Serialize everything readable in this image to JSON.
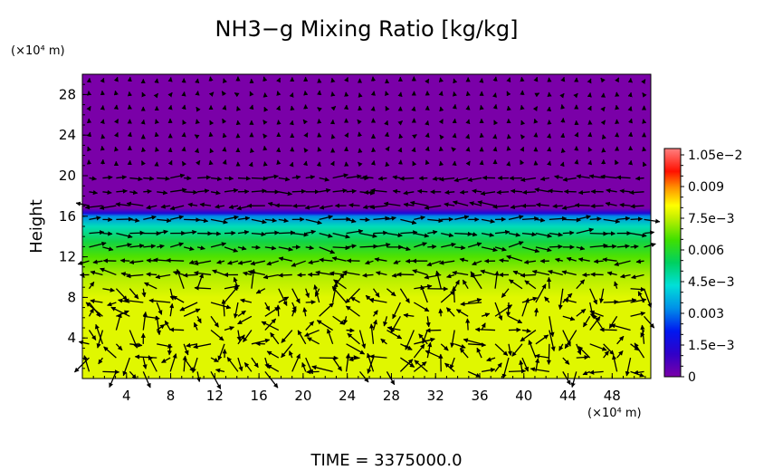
{
  "chart_data": {
    "type": "heatmap",
    "title": "NH3−g Mixing Ratio [kg/kg]",
    "xlabel": "",
    "ylabel": "Height",
    "x_unit": "(×10⁴ m)",
    "y_unit": "(×10⁴ m)",
    "xlim": [
      0,
      51.5
    ],
    "ylim": [
      0,
      30
    ],
    "x_ticks": [
      "4",
      "8",
      "12",
      "16",
      "20",
      "24",
      "28",
      "32",
      "36",
      "40",
      "44",
      "48"
    ],
    "y_ticks": [
      "4",
      "8",
      "12",
      "16",
      "20",
      "24",
      "28"
    ],
    "colorbar": {
      "min": 0,
      "max": 0.0108,
      "ticks": [
        {
          "value": 0,
          "label": "0"
        },
        {
          "value": 0.0015,
          "label": "1.5e−3"
        },
        {
          "value": 0.003,
          "label": "0.003"
        },
        {
          "value": 0.0045,
          "label": "4.5e−3"
        },
        {
          "value": 0.006,
          "label": "0.006"
        },
        {
          "value": 0.0075,
          "label": "7.5e−3"
        },
        {
          "value": 0.009,
          "label": "0.009"
        },
        {
          "value": 0.0105,
          "label": "1.05e−2"
        }
      ]
    },
    "vertical_profile": [
      {
        "height": 0,
        "value": 0.0078
      },
      {
        "height": 8,
        "value": 0.0078
      },
      {
        "height": 10,
        "value": 0.0074
      },
      {
        "height": 12,
        "value": 0.0066
      },
      {
        "height": 13.5,
        "value": 0.0057
      },
      {
        "height": 15,
        "value": 0.0046
      },
      {
        "height": 16,
        "value": 0.0032
      },
      {
        "height": 16.3,
        "value": 0.0015
      },
      {
        "height": 16.8,
        "value": 0.0
      }
    ],
    "vectors": "wind vectors (arrows) overlaid",
    "footer": "TIME  =  3375000.0"
  }
}
